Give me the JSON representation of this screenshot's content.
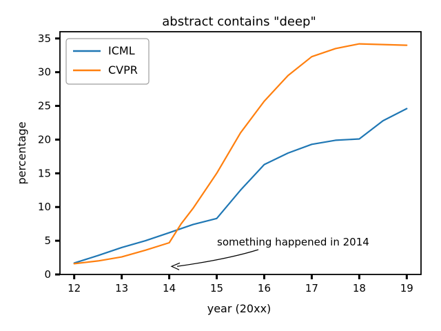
{
  "chart_data": {
    "type": "line",
    "title": "abstract contains \"deep\"",
    "xlabel": "year (20xx)",
    "ylabel": "percentage",
    "xlim": [
      11.7,
      19.3
    ],
    "ylim": [
      0,
      36
    ],
    "x_ticks": [
      12,
      13,
      14,
      15,
      16,
      17,
      18,
      19
    ],
    "y_ticks": [
      0,
      5,
      10,
      15,
      20,
      25,
      30,
      35
    ],
    "grid": false,
    "legend_position": "top-left",
    "series": [
      {
        "name": "ICML",
        "color": "#1f77b4",
        "x": [
          12,
          12.5,
          13,
          13.5,
          14,
          14.5,
          15,
          15.5,
          16,
          16.5,
          17,
          17.5,
          18,
          18.5,
          19
        ],
        "y": [
          1.7,
          2.8,
          4.0,
          5.0,
          6.2,
          7.4,
          8.3,
          12.5,
          16.3,
          18.0,
          19.3,
          19.9,
          20.1,
          22.8,
          24.6
        ]
      },
      {
        "name": "CVPR",
        "color": "#ff7f0e",
        "x": [
          12,
          12.5,
          13,
          13.5,
          14,
          14.25,
          14.5,
          15,
          15.5,
          16,
          16.5,
          17,
          17.5,
          18,
          18.5,
          19
        ],
        "y": [
          1.6,
          2.0,
          2.6,
          3.6,
          4.7,
          7.5,
          9.8,
          15.0,
          21.0,
          25.7,
          29.5,
          32.3,
          33.5,
          34.2,
          34.1,
          34.0
        ]
      }
    ],
    "annotations": [
      {
        "text": "something happened in 2014",
        "x": 14.05,
        "y": 1.2
      }
    ]
  }
}
